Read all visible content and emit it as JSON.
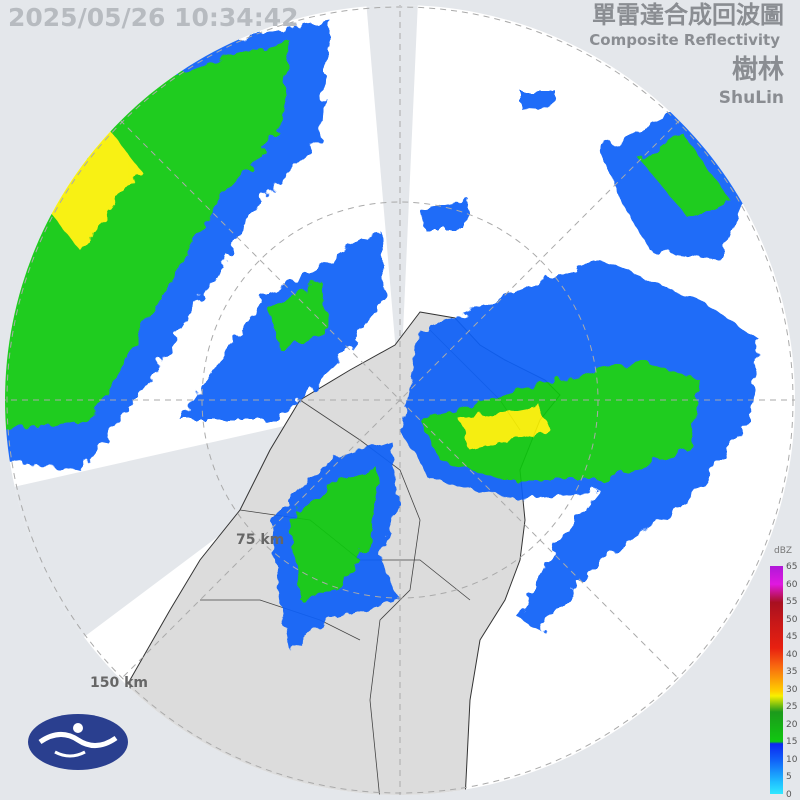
{
  "header": {
    "timestamp": "2025/05/26 10:34:42",
    "title_zh": "單雷達合成回波圖",
    "title_en": "Composite Reflectivity",
    "station_zh": "樹林",
    "station_en": "ShuLin"
  },
  "rings": {
    "inner_label": "75 km",
    "outer_label": "150 km"
  },
  "legend": {
    "unit": "dBZ",
    "ticks": [
      "65",
      "60",
      "55",
      "50",
      "45",
      "40",
      "35",
      "30",
      "25",
      "20",
      "15",
      "10",
      "5",
      "0"
    ]
  },
  "colors": {
    "background": "#e4e7eb",
    "coverage": "#ffffff",
    "land": "#d9d9d9",
    "weak": "#1060f8",
    "moderate": "#10c810",
    "strong": "#f8f000",
    "logo": "#2a3f8f"
  },
  "logo": {
    "name": "cwa-logo"
  }
}
